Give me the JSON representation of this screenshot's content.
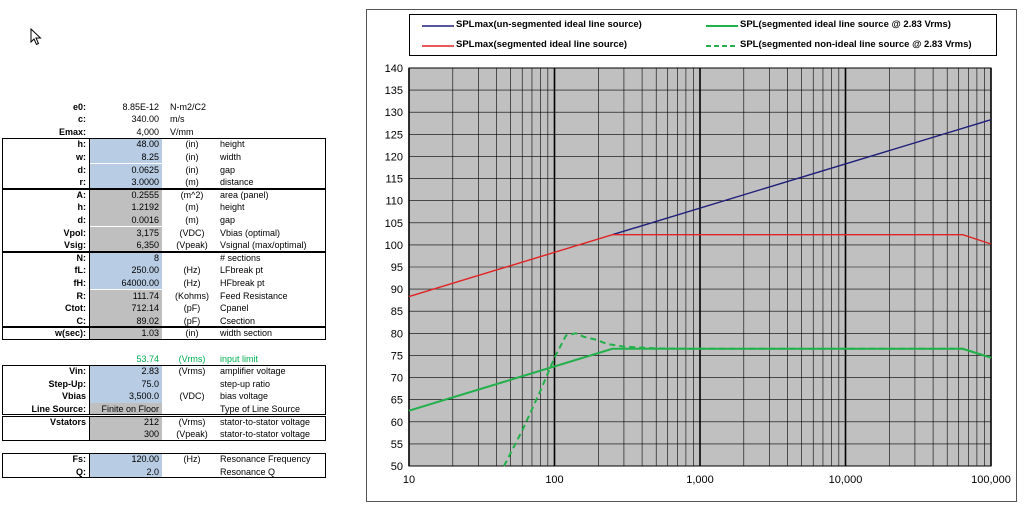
{
  "spreadsheet": {
    "rows": [
      {
        "label": "e0:",
        "value": "8.85E-12",
        "unit": "N-m2/C2",
        "desc": ""
      },
      {
        "label": "c:",
        "value": "340.00",
        "unit": "m/s",
        "desc": ""
      },
      {
        "label": "Emax:",
        "value": "4,000",
        "unit": "V/mm",
        "desc": ""
      },
      {
        "label": "h:",
        "value": "48.00",
        "unit": "(in)",
        "desc": "height"
      },
      {
        "label": "w:",
        "value": "8.25",
        "unit": "(in)",
        "desc": "width"
      },
      {
        "label": "d:",
        "value": "0.0625",
        "unit": "(in)",
        "desc": "gap"
      },
      {
        "label": "r:",
        "value": "3.0000",
        "unit": "(m)",
        "desc": "distance"
      },
      {
        "label": "A:",
        "value": "0.2555",
        "unit": "(m^2)",
        "desc": "area (panel)"
      },
      {
        "label": "h:",
        "value": "1.2192",
        "unit": "(m)",
        "desc": "height"
      },
      {
        "label": "d:",
        "value": "0.0016",
        "unit": "(m)",
        "desc": "gap"
      },
      {
        "label": "Vpol:",
        "value": "3,175",
        "unit": "(VDC)",
        "desc": "Vbias (optimal)"
      },
      {
        "label": "Vsig:",
        "value": "6,350",
        "unit": "(Vpeak)",
        "desc": "Vsignal (max/optimal)"
      },
      {
        "label": "N:",
        "value": "8",
        "unit": "",
        "desc": "# sections"
      },
      {
        "label": "fL:",
        "value": "250.00",
        "unit": "(Hz)",
        "desc": "LFbreak pt"
      },
      {
        "label": "fH:",
        "value": "64000.00",
        "unit": "(Hz)",
        "desc": "HFbreak pt"
      },
      {
        "label": "R:",
        "value": "111.74",
        "unit": "(Kohms)",
        "desc": "Feed Resistance"
      },
      {
        "label": "Ctot:",
        "value": "712.14",
        "unit": "(pF)",
        "desc": "Cpanel"
      },
      {
        "label": "C:",
        "value": "89.02",
        "unit": "(pF)",
        "desc": "Csection"
      },
      {
        "label": "w(sec):",
        "value": "1.03",
        "unit": "(in)",
        "desc": "width section"
      },
      {
        "label": "",
        "value": "",
        "unit": "",
        "desc": ""
      },
      {
        "label": "",
        "value": "53.74",
        "unit": "(Vrms)",
        "desc": "input limit"
      },
      {
        "label": "Vin:",
        "value": "2.83",
        "unit": "(Vrms)",
        "desc": "amplifier voltage"
      },
      {
        "label": "Step-Up:",
        "value": "75.0",
        "unit": "",
        "desc": "step-up ratio"
      },
      {
        "label": "Vbias",
        "value": "3,500.0",
        "unit": "(VDC)",
        "desc": "bias voltage"
      },
      {
        "label": "Line Source:",
        "value": "Finite on Floor",
        "unit": "",
        "desc": "Type of Line Source"
      },
      {
        "label": "Vstators",
        "value": "212",
        "unit": "(Vrms)",
        "desc": "stator-to-stator voltage"
      },
      {
        "label": "",
        "value": "300",
        "unit": "(Vpeak)",
        "desc": "stator-to-stator voltage"
      },
      {
        "label": "",
        "value": "",
        "unit": "",
        "desc": ""
      },
      {
        "label": "Fs:",
        "value": "120.00",
        "unit": "(Hz)",
        "desc": "Resonance Frequency"
      },
      {
        "label": "Q:",
        "value": "2.0",
        "unit": "",
        "desc": "Resonance Q"
      }
    ]
  },
  "colors": {
    "input_cell": "#b8cce4",
    "calc_cell": "#bfbfbf",
    "green_text": "#00b050",
    "plot_bg": "#c0c0c0",
    "navy": "#1f1f7a",
    "red": "#e02424",
    "green": "#22b04a"
  },
  "chart_data": {
    "type": "line",
    "x_scale": "log",
    "xlim": [
      10,
      100000
    ],
    "ylim": [
      50,
      140
    ],
    "x_ticks": [
      "10",
      "100",
      "1,000",
      "10,000",
      "100,000"
    ],
    "y_ticks": [
      "50",
      "55",
      "60",
      "65",
      "70",
      "75",
      "80",
      "85",
      "90",
      "95",
      "100",
      "105",
      "110",
      "115",
      "120",
      "125",
      "130",
      "135",
      "140"
    ],
    "grid": true,
    "legend_position": "top",
    "series": [
      {
        "name": "SPLmax(un-segmented ideal line source)",
        "color": "#1f1f7a",
        "dash": false,
        "points": [
          [
            250,
            102.3
          ],
          [
            100000,
            128.3
          ]
        ]
      },
      {
        "name": "SPLmax(segmented ideal line source)",
        "color": "#e02424",
        "dash": false,
        "points": [
          [
            10,
            88.3
          ],
          [
            250,
            102.3
          ],
          [
            64000,
            102.3
          ],
          [
            100000,
            100.2
          ]
        ]
      },
      {
        "name": "SPL(segmented ideal line source @ 2.83 Vrms)",
        "color": "#22b04a",
        "dash": false,
        "points": [
          [
            10,
            62.5
          ],
          [
            250,
            76.5
          ],
          [
            64000,
            76.5
          ],
          [
            100000,
            74.5
          ]
        ]
      },
      {
        "name": "SPL(segmented non-ideal line source @ 2.83 Vrms)",
        "color": "#22b04a",
        "dash": true,
        "points": [
          [
            45,
            50
          ],
          [
            60,
            58
          ],
          [
            80,
            67
          ],
          [
            100,
            74.5
          ],
          [
            120,
            79.5
          ],
          [
            140,
            80
          ],
          [
            160,
            79.2
          ],
          [
            190,
            78.6
          ],
          [
            230,
            77.6
          ],
          [
            300,
            77.0
          ],
          [
            500,
            76.6
          ],
          [
            1000,
            76.5
          ],
          [
            64000,
            76.5
          ],
          [
            100000,
            74.5
          ]
        ]
      }
    ]
  }
}
